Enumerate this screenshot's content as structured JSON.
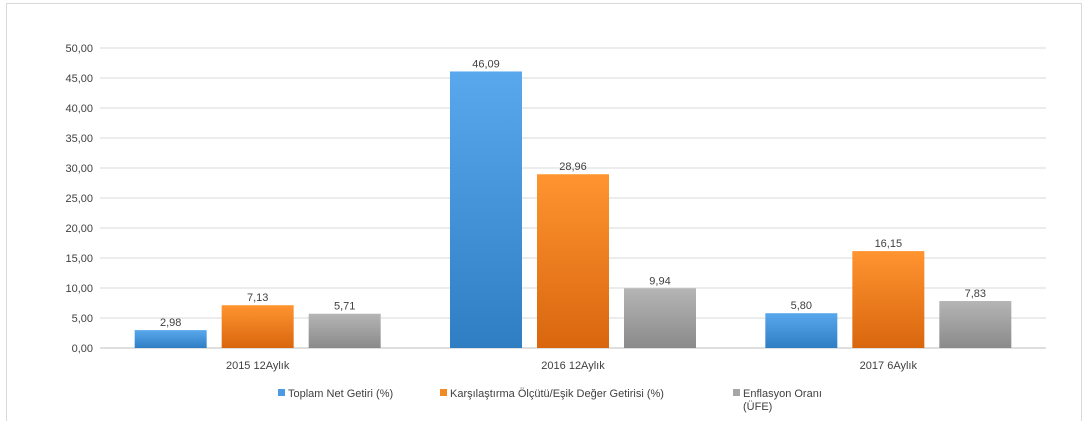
{
  "chart_data": {
    "type": "bar",
    "categories": [
      "2015 12Aylık",
      "2016 12Aylık",
      "2017 6Aylık"
    ],
    "series": [
      {
        "name": "Toplam Net Getiri (%)",
        "values": [
          2.98,
          46.09,
          5.8
        ],
        "labels": [
          "2,98",
          "46,09",
          "5,80"
        ],
        "color": "#4a9be3"
      },
      {
        "name": "Karşılaştırma Ölçütü/Eşik Değer Getirisi (%)",
        "values": [
          7.13,
          28.96,
          16.15
        ],
        "labels": [
          "7,13",
          "28,96",
          "16,15"
        ],
        "color": "#f28a23"
      },
      {
        "name": "Enflasyon Oranı (ÜFE)",
        "values": [
          5.71,
          9.94,
          7.83
        ],
        "labels": [
          "5,71",
          "9,94",
          "7,83"
        ],
        "color": "#a6a6a6"
      }
    ],
    "ylim": [
      0,
      50
    ],
    "yticks": [
      "0,00",
      "5,00",
      "10,00",
      "15,00",
      "20,00",
      "25,00",
      "30,00",
      "35,00",
      "40,00",
      "45,00",
      "50,00"
    ],
    "grid": true,
    "legend_position": "bottom",
    "legend_lines": [
      [
        "Toplam Net Getiri (%)"
      ],
      [
        "Karşılaştırma Ölçütü/Eşik Değer Getirisi (%)"
      ],
      [
        "Enflasyon Oranı",
        "(ÜFE)"
      ]
    ]
  }
}
